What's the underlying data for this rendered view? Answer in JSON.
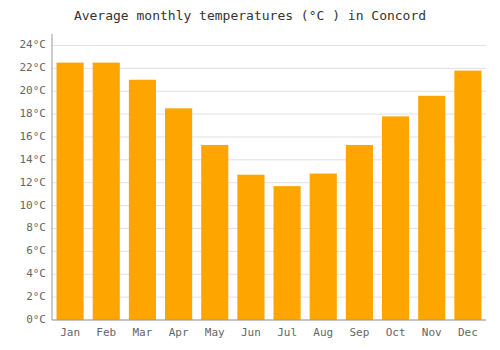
{
  "chart_data": {
    "type": "bar",
    "title": "Average monthly temperatures (°C ) in Concord",
    "categories": [
      "Jan",
      "Feb",
      "Mar",
      "Apr",
      "May",
      "Jun",
      "Jul",
      "Aug",
      "Sep",
      "Oct",
      "Nov",
      "Dec"
    ],
    "values": [
      22.5,
      22.5,
      21.0,
      18.5,
      15.3,
      12.7,
      11.7,
      12.8,
      15.3,
      17.8,
      19.6,
      21.8
    ],
    "color": "#FFA500",
    "ylim": [
      0,
      25
    ],
    "yticks": [
      {
        "value": 0,
        "label": "0°C"
      },
      {
        "value": 2,
        "label": "2°C"
      },
      {
        "value": 4,
        "label": "4°C"
      },
      {
        "value": 6,
        "label": "6°C"
      },
      {
        "value": 8,
        "label": "8°C"
      },
      {
        "value": 10,
        "label": "10°C"
      },
      {
        "value": 12,
        "label": "12°C"
      },
      {
        "value": 14,
        "label": "14°C"
      },
      {
        "value": 16,
        "label": "16°C"
      },
      {
        "value": 18,
        "label": "18°C"
      },
      {
        "value": 20,
        "label": "20°C"
      },
      {
        "value": 22,
        "label": "22°C"
      },
      {
        "value": 24,
        "label": "24°C"
      }
    ],
    "grid": true
  }
}
